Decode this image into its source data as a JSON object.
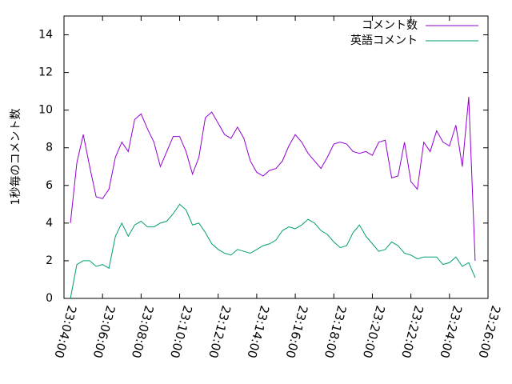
{
  "chart_data": {
    "type": "line",
    "ylabel": "1秒毎のコメント数",
    "x": [
      "23:04:20",
      "23:04:40",
      "23:05:00",
      "23:05:20",
      "23:05:40",
      "23:06:00",
      "23:06:20",
      "23:06:40",
      "23:07:00",
      "23:07:20",
      "23:07:40",
      "23:08:00",
      "23:08:20",
      "23:08:40",
      "23:09:00",
      "23:09:20",
      "23:09:40",
      "23:10:00",
      "23:10:20",
      "23:10:40",
      "23:11:00",
      "23:11:20",
      "23:11:40",
      "23:12:00",
      "23:12:20",
      "23:12:40",
      "23:13:00",
      "23:13:20",
      "23:13:40",
      "23:14:00",
      "23:14:20",
      "23:14:40",
      "23:15:00",
      "23:15:20",
      "23:15:40",
      "23:16:00",
      "23:16:20",
      "23:16:40",
      "23:17:00",
      "23:17:20",
      "23:17:40",
      "23:18:00",
      "23:18:20",
      "23:18:40",
      "23:19:00",
      "23:19:20",
      "23:19:40",
      "23:20:00",
      "23:20:20",
      "23:20:40",
      "23:21:00",
      "23:21:20",
      "23:21:40",
      "23:22:00",
      "23:22:20",
      "23:22:40",
      "23:23:00",
      "23:23:20",
      "23:23:40",
      "23:24:00",
      "23:24:20",
      "23:24:40",
      "23:25:00",
      "23:25:20"
    ],
    "series": [
      {
        "name": "コメント数",
        "color": "#9400d3",
        "values": [
          4.0,
          7.2,
          8.7,
          7.0,
          5.4,
          5.3,
          5.8,
          7.5,
          8.3,
          7.8,
          9.5,
          9.8,
          9.0,
          8.3,
          7.0,
          7.8,
          8.6,
          8.6,
          7.8,
          6.6,
          7.5,
          9.6,
          9.9,
          9.3,
          8.7,
          8.5,
          9.1,
          8.5,
          7.3,
          6.7,
          6.5,
          6.8,
          6.9,
          7.3,
          8.1,
          8.7,
          8.3,
          7.7,
          7.3,
          6.9,
          7.5,
          8.2,
          8.3,
          8.2,
          7.8,
          7.7,
          7.8,
          7.6,
          8.3,
          8.4,
          6.4,
          6.5,
          8.3,
          6.2,
          5.8,
          8.3,
          7.8,
          8.9,
          8.3,
          8.1,
          9.2,
          7.0,
          10.7,
          2.0
        ]
      },
      {
        "name": "英語コメント",
        "color": "#009e73",
        "values": [
          0.0,
          1.8,
          2.0,
          2.0,
          1.7,
          1.8,
          1.6,
          3.3,
          4.0,
          3.3,
          3.9,
          4.1,
          3.8,
          3.8,
          4.0,
          4.1,
          4.5,
          5.0,
          4.7,
          3.9,
          4.0,
          3.5,
          2.9,
          2.6,
          2.4,
          2.3,
          2.6,
          2.5,
          2.4,
          2.6,
          2.8,
          2.9,
          3.1,
          3.6,
          3.8,
          3.7,
          3.9,
          4.2,
          4.0,
          3.6,
          3.4,
          3.0,
          2.7,
          2.8,
          3.5,
          3.9,
          3.3,
          2.9,
          2.5,
          2.6,
          3.0,
          2.8,
          2.4,
          2.3,
          2.1,
          2.2,
          2.2,
          2.2,
          1.8,
          1.9,
          2.2,
          1.7,
          1.9,
          1.1
        ]
      }
    ],
    "xlim": [
      "23:04:00",
      "23:26:00"
    ],
    "xticks": [
      "23:04:00",
      "23:06:00",
      "23:08:00",
      "23:10:00",
      "23:12:00",
      "23:14:00",
      "23:16:00",
      "23:18:00",
      "23:20:00",
      "23:22:00",
      "23:24:00",
      "23:26:00"
    ],
    "ylim": [
      0,
      15
    ],
    "yticks": [
      0,
      2,
      4,
      6,
      8,
      10,
      12,
      14
    ],
    "legend": "top-right"
  }
}
